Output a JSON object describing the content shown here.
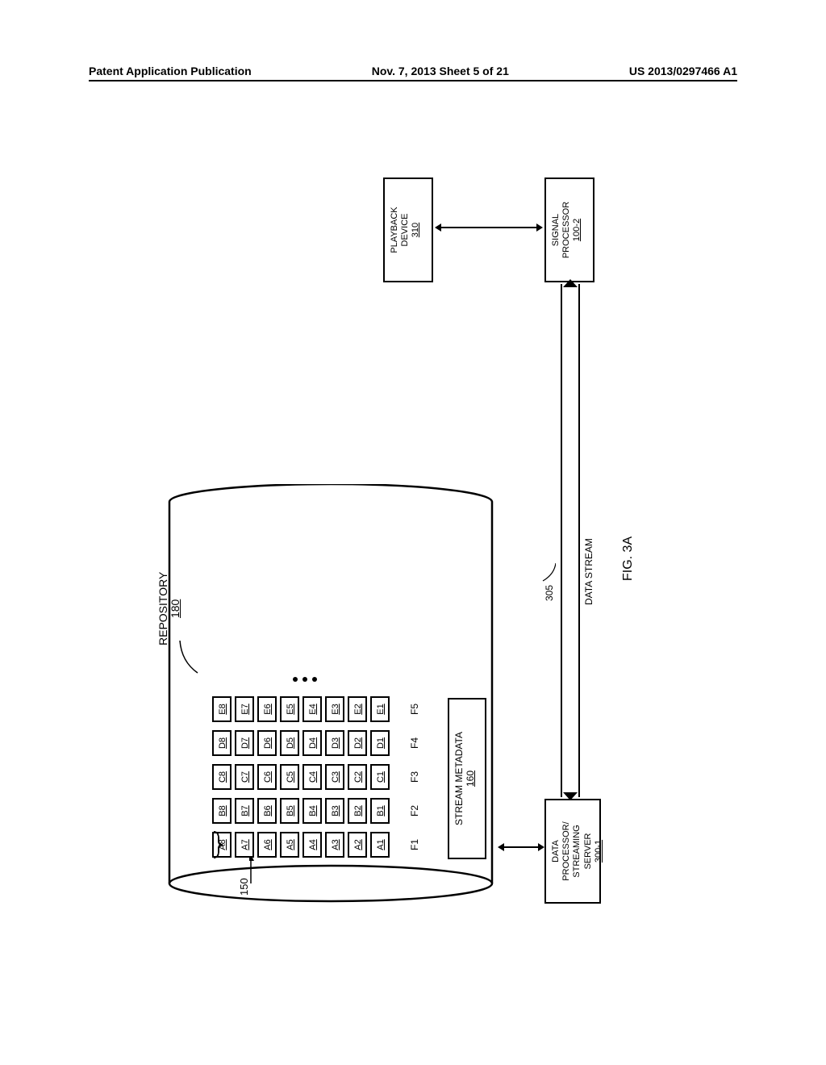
{
  "header": {
    "left": "Patent Application Publication",
    "center": "Nov. 7, 2013  Sheet 5 of 21",
    "right": "US 2013/0297466 A1"
  },
  "repository": {
    "label": "REPOSITORY",
    "ref": "180",
    "grid_ref": "150",
    "columns": [
      {
        "tag": "F1",
        "cells": [
          "A8",
          "A7",
          "A6",
          "A5",
          "A4",
          "A3",
          "A2",
          "A1"
        ]
      },
      {
        "tag": "F2",
        "cells": [
          "B8",
          "B7",
          "B6",
          "B5",
          "B4",
          "B3",
          "B2",
          "B1"
        ]
      },
      {
        "tag": "F3",
        "cells": [
          "C8",
          "C7",
          "C6",
          "C5",
          "C4",
          "C3",
          "C2",
          "C1"
        ]
      },
      {
        "tag": "F4",
        "cells": [
          "D8",
          "D7",
          "D6",
          "D5",
          "D4",
          "D3",
          "D2",
          "D1"
        ]
      },
      {
        "tag": "F5",
        "cells": [
          "E8",
          "E7",
          "E6",
          "E5",
          "E4",
          "E3",
          "E2",
          "E1"
        ]
      }
    ],
    "stream_metadata": {
      "label": "STREAM METADATA",
      "ref": "160"
    }
  },
  "server": {
    "line1": "DATA",
    "line2": "PROCESSOR/",
    "line3": "STREAMING",
    "line4": "SERVER",
    "ref": "300-1"
  },
  "data_stream": {
    "label": "DATA STREAM",
    "ref": "305"
  },
  "signal_processor": {
    "line1": "SIGNAL",
    "line2": "PROCESSOR",
    "ref": "100-2"
  },
  "playback": {
    "line1": "PLAYBACK",
    "line2": "DEVICE",
    "ref": "310"
  },
  "figure_caption": "FIG. 3A",
  "colors": {
    "line": "#000000",
    "bg": "#ffffff"
  }
}
